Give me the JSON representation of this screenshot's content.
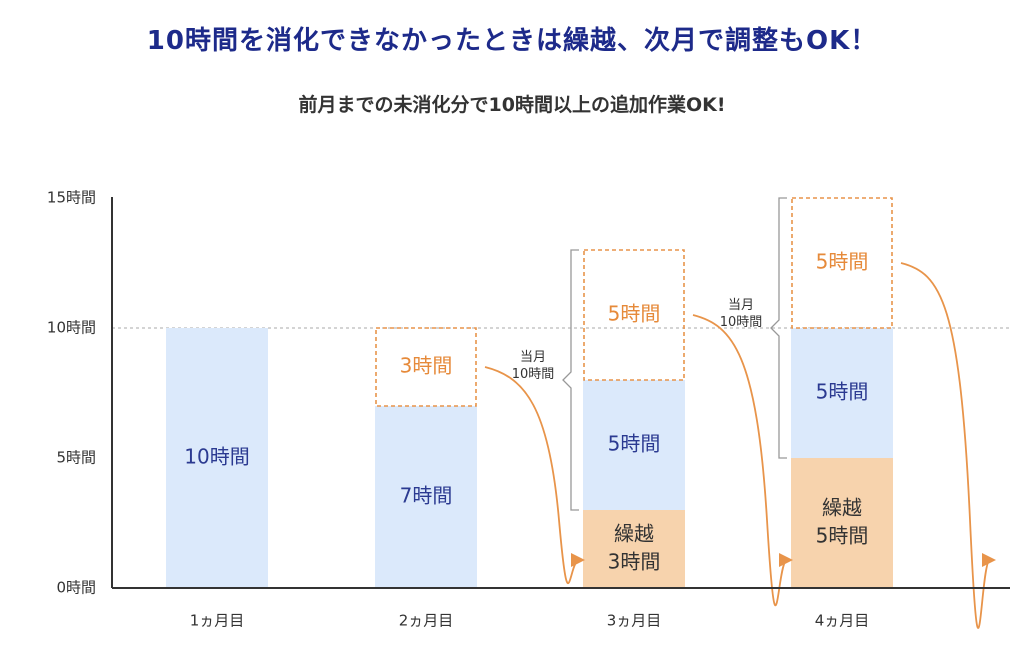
{
  "page": {
    "title": "10時間を消化できなかったときは繰越、次月で調整もOK！",
    "subtitle": "前月までの未消化分で10時間以上の追加作業OK!"
  },
  "chart_data": {
    "type": "bar",
    "stacked": true,
    "categories": [
      "1ヵ月目",
      "2ヵ月目",
      "3ヵ月目",
      "4ヵ月目"
    ],
    "ylim": [
      0,
      15
    ],
    "yticks": [
      {
        "value": 0,
        "label": "0時間"
      },
      {
        "value": 5,
        "label": "5時間"
      },
      {
        "value": 10,
        "label": "10時間"
      },
      {
        "value": 15,
        "label": "15時間"
      }
    ],
    "reference_line": 10,
    "grid": false,
    "legend": "none",
    "colors": {
      "used": "#dbe9fb",
      "carryover": "#f7d3ad",
      "unused_border": "#e8944a",
      "used_text": "#2b3a91",
      "unused_text": "#e68a3a",
      "arrow": "#e8944a",
      "axis": "#333333",
      "refline": "#aaaaaa"
    },
    "series": [
      {
        "key": "carryover",
        "values": [
          0,
          0,
          3,
          5
        ],
        "labels": [
          "",
          "",
          "繰越\n3時間",
          "繰越\n5時間"
        ]
      },
      {
        "key": "used",
        "values": [
          10,
          7,
          5,
          5
        ],
        "labels": [
          "10時間",
          "7時間",
          "5時間",
          "5時間"
        ]
      },
      {
        "key": "unused",
        "values": [
          0,
          3,
          5,
          5
        ],
        "labels": [
          "",
          "3時間",
          "5時間",
          "5時間"
        ]
      }
    ],
    "brackets": [
      {
        "category_index": 2,
        "from": 3,
        "to": 13,
        "label": "当月\n10時間"
      },
      {
        "category_index": 3,
        "from": 5,
        "to": 15,
        "label": "当月\n10時間"
      }
    ],
    "arrows": [
      {
        "from_index": 1,
        "to_index": 2
      },
      {
        "from_index": 2,
        "to_index": 3
      },
      {
        "from_index": 3,
        "to_index": 4
      }
    ]
  }
}
